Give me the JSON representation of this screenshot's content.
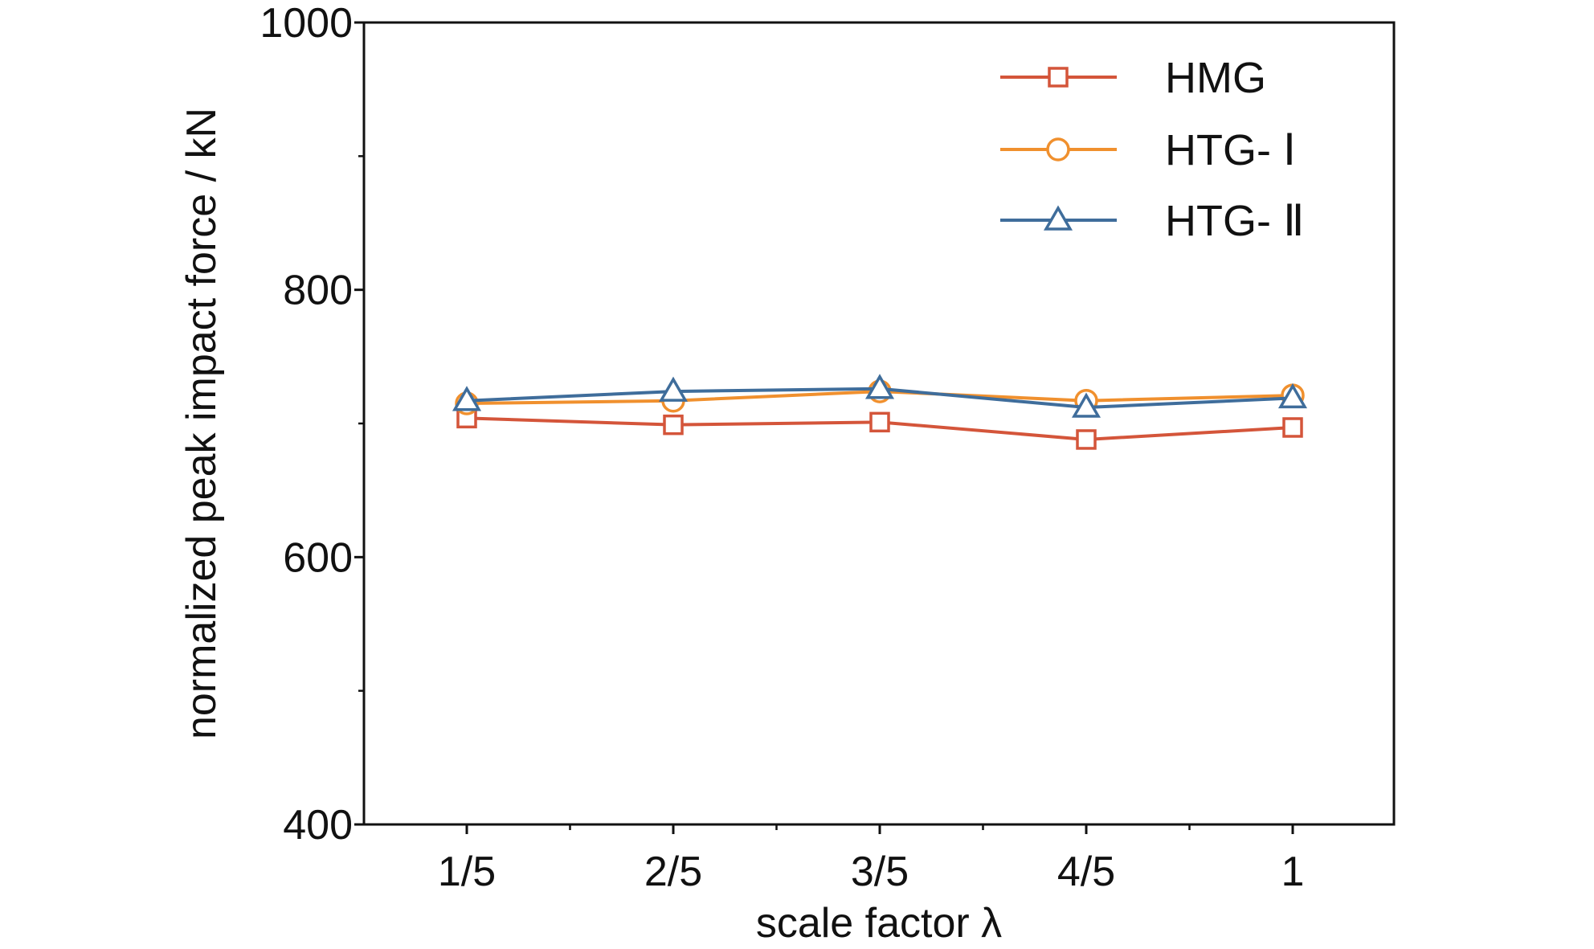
{
  "chart_data": {
    "type": "line",
    "title": "",
    "xlabel": "scale factor λ",
    "ylabel": "normalized peak impact force / kN",
    "categories": [
      "1/5",
      "2/5",
      "3/5",
      "4/5",
      "1"
    ],
    "ylim": [
      400,
      1000
    ],
    "yticks": [
      400,
      600,
      800,
      1000
    ],
    "grid": false,
    "legend_position": "top-right",
    "series": [
      {
        "name": "HMG",
        "marker": "square",
        "color": "#d4553a",
        "values": [
          704,
          699,
          701,
          688,
          697
        ]
      },
      {
        "name": "HTG- Ⅰ",
        "marker": "circle",
        "color": "#f0902e",
        "values": [
          715,
          717,
          724,
          717,
          721
        ]
      },
      {
        "name": "HTG- Ⅱ",
        "marker": "triangle",
        "color": "#3f6d9b",
        "values": [
          717,
          724,
          726,
          712,
          719
        ]
      }
    ]
  }
}
